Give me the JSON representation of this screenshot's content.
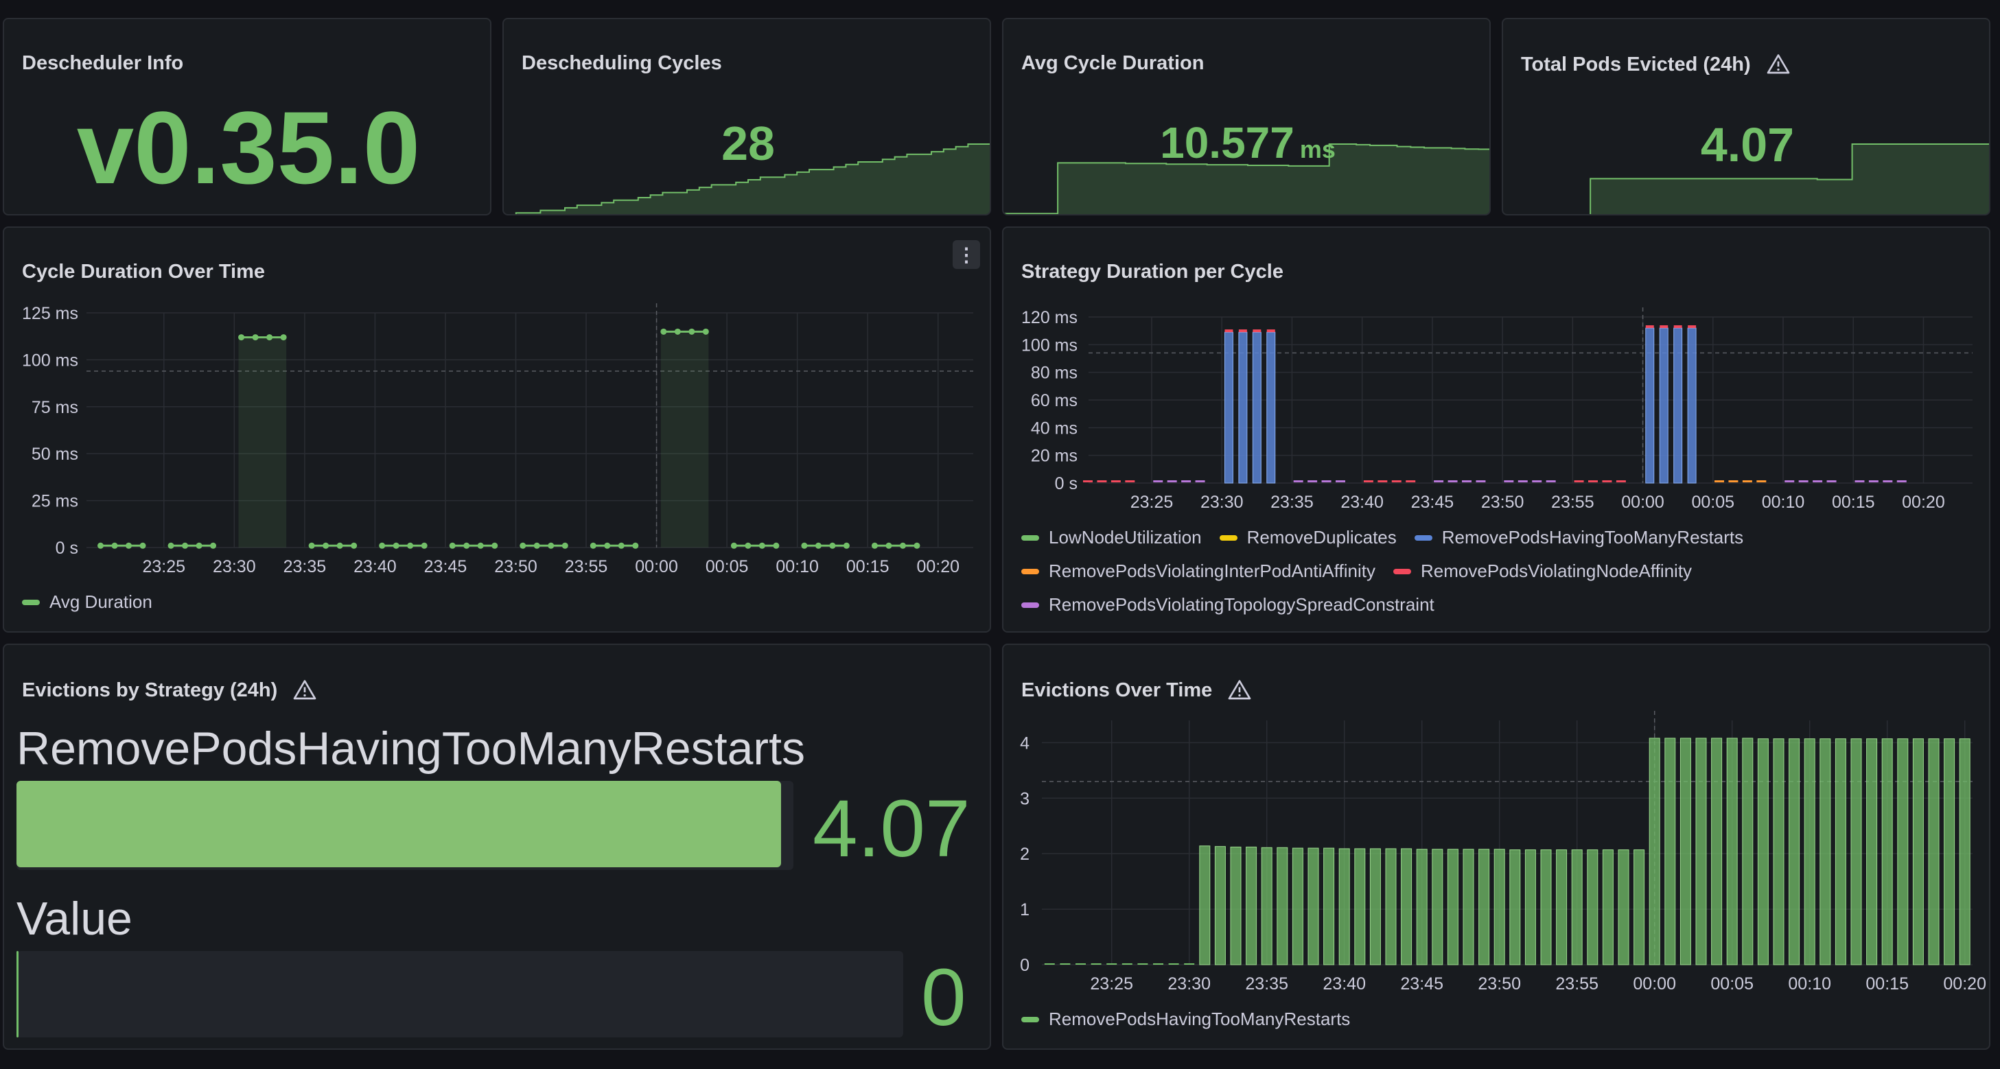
{
  "colors": {
    "green": "#73bf69",
    "blue": "#5a84d6",
    "yellow": "#f2cc0c",
    "orange": "#ff9830",
    "red": "#f2495c",
    "purple": "#b877d9",
    "panel_bg": "#181b1f",
    "page_bg": "#111217"
  },
  "panels": {
    "info": {
      "title": "Descheduler Info",
      "value": "v0.35.0"
    },
    "cycles": {
      "title": "Descheduling Cycles",
      "value": "28"
    },
    "avg": {
      "title": "Avg Cycle Duration",
      "value": "10.577",
      "unit": "ms"
    },
    "evicted": {
      "title": "Total Pods Evicted (24h)",
      "value": "4.07",
      "icon": "warning-icon"
    },
    "cycle_duration": {
      "title": "Cycle Duration Over Time",
      "menu_icon": "more-vertical-icon",
      "legend": [
        "Avg Duration"
      ]
    },
    "strategy_duration": {
      "title": "Strategy Duration per Cycle",
      "legend": [
        "LowNodeUtilization",
        "RemoveDuplicates",
        "RemovePodsHavingTooManyRestarts",
        "RemovePodsViolatingInterPodAntiAffinity",
        "RemovePodsViolatingNodeAffinity",
        "RemovePodsViolatingTopologySpreadConstraint"
      ]
    },
    "evictions_by_strategy": {
      "title": "Evictions by Strategy (24h)",
      "icon": "warning-icon",
      "bars": [
        {
          "label": "RemovePodsHavingTooManyRestarts",
          "value": "4.07",
          "fraction": 0.985
        },
        {
          "label": "Value",
          "value": "0",
          "fraction": 0.0
        }
      ]
    },
    "evictions_over_time": {
      "title": "Evictions Over Time",
      "icon": "warning-icon",
      "legend": [
        "RemovePodsHavingTooManyRestarts"
      ]
    }
  },
  "chart_data": [
    {
      "id": "cycles_sparkline",
      "type": "area",
      "y": [
        0,
        1,
        1,
        2,
        2,
        3,
        4,
        4,
        5,
        6,
        6,
        7,
        8,
        9,
        9,
        10,
        11,
        12,
        12,
        13,
        14,
        15,
        15,
        16,
        17,
        18,
        18,
        19,
        20,
        21,
        21,
        22,
        23,
        24,
        24,
        25,
        26,
        27,
        28,
        28
      ]
    },
    {
      "id": "avg_sparkline",
      "type": "area",
      "y": [
        0.3,
        0.3,
        0.3,
        0.3,
        8.4,
        8.4,
        8.4,
        8.4,
        8.4,
        8.3,
        8.3,
        8.3,
        8.2,
        8.2,
        8.2,
        8.1,
        8.1,
        8.1,
        8.0,
        8.0,
        8.0,
        7.9,
        7.9,
        7.9,
        11.4,
        11.4,
        11.3,
        11.2,
        11.2,
        11.0,
        10.9,
        10.8,
        10.8,
        10.7,
        10.6,
        10.58
      ]
    },
    {
      "id": "evicted_sparkline",
      "type": "area",
      "y": [
        0,
        0,
        0,
        0,
        0,
        2.1,
        2.1,
        2.1,
        2.1,
        2.1,
        2.1,
        2.1,
        2.1,
        2.1,
        2.1,
        2.1,
        2.1,
        2.1,
        2.05,
        2.05,
        4.07,
        4.07,
        4.07,
        4.07,
        4.07,
        4.07,
        4.07,
        4.07
      ]
    },
    {
      "id": "cycle_duration_over_time",
      "type": "line",
      "x_ticks": [
        "23:25",
        "23:30",
        "23:35",
        "23:40",
        "23:45",
        "23:50",
        "23:55",
        "00:00",
        "00:05",
        "00:10",
        "00:15",
        "00:20"
      ],
      "y_ticks": [
        "125 ms",
        "100 ms",
        "75 ms",
        "50 ms",
        "25 ms",
        "0 s"
      ],
      "ylim": [
        0,
        125
      ],
      "threshold": 94,
      "xlim": [
        -5.5,
        57.5
      ],
      "series": [
        {
          "name": "Avg Duration",
          "points": [
            [
              -4.5,
              1
            ],
            [
              -3.5,
              1
            ],
            [
              -2.5,
              1
            ],
            [
              -1.5,
              1
            ],
            [
              0.5,
              1
            ],
            [
              1.5,
              1
            ],
            [
              2.5,
              1
            ],
            [
              3.5,
              1
            ],
            [
              5.5,
              112
            ],
            [
              6.5,
              112
            ],
            [
              7.5,
              112
            ],
            [
              8.5,
              112
            ],
            [
              10.5,
              1
            ],
            [
              11.5,
              1
            ],
            [
              12.5,
              1
            ],
            [
              13.5,
              1
            ],
            [
              15.5,
              1
            ],
            [
              16.5,
              1
            ],
            [
              17.5,
              1
            ],
            [
              18.5,
              1
            ],
            [
              20.5,
              1
            ],
            [
              21.5,
              1
            ],
            [
              22.5,
              1
            ],
            [
              23.5,
              1
            ],
            [
              25.5,
              1
            ],
            [
              26.5,
              1
            ],
            [
              27.5,
              1
            ],
            [
              28.5,
              1
            ],
            [
              30.5,
              1
            ],
            [
              31.5,
              1
            ],
            [
              32.5,
              1
            ],
            [
              33.5,
              1
            ],
            [
              35.5,
              115
            ],
            [
              36.5,
              115
            ],
            [
              37.5,
              115
            ],
            [
              38.5,
              115
            ],
            [
              40.5,
              1
            ],
            [
              41.5,
              1
            ],
            [
              42.5,
              1
            ],
            [
              43.5,
              1
            ],
            [
              45.5,
              1
            ],
            [
              46.5,
              1
            ],
            [
              47.5,
              1
            ],
            [
              48.5,
              1
            ],
            [
              50.5,
              1
            ],
            [
              51.5,
              1
            ],
            [
              52.5,
              1
            ],
            [
              53.5,
              1
            ]
          ]
        }
      ]
    },
    {
      "id": "strategy_duration_per_cycle",
      "type": "bar",
      "x_ticks": [
        "23:25",
        "23:30",
        "23:35",
        "23:40",
        "23:45",
        "23:50",
        "23:55",
        "00:00",
        "00:05",
        "00:10",
        "00:15",
        "00:20"
      ],
      "y_ticks": [
        "120 ms",
        "100 ms",
        "80 ms",
        "60 ms",
        "40 ms",
        "20 ms",
        "0 s"
      ],
      "ylim": [
        0,
        120
      ],
      "threshold": 94,
      "xlim": [
        -4.5,
        58.5
      ],
      "cycle_groups": [
        {
          "x": [
            -4.5,
            -3.5,
            -2.5,
            -1.5
          ],
          "total": 1,
          "color": "red"
        },
        {
          "x": [
            0.5,
            1.5,
            2.5,
            3.5
          ],
          "total": 1,
          "color": "purple"
        },
        {
          "x": [
            5.5,
            6.5,
            7.5,
            8.5
          ],
          "total": 111,
          "color": "blue"
        },
        {
          "x": [
            10.5,
            11.5,
            12.5,
            13.5
          ],
          "total": 1,
          "color": "purple"
        },
        {
          "x": [
            15.5,
            16.5,
            17.5,
            18.5
          ],
          "total": 1,
          "color": "red"
        },
        {
          "x": [
            20.5,
            21.5,
            22.5,
            23.5
          ],
          "total": 1,
          "color": "purple"
        },
        {
          "x": [
            25.5,
            26.5,
            27.5,
            28.5
          ],
          "total": 1,
          "color": "purple"
        },
        {
          "x": [
            30.5,
            31.5,
            32.5,
            33.5
          ],
          "total": 1,
          "color": "red"
        },
        {
          "x": [
            35.5,
            36.5,
            37.5,
            38.5
          ],
          "total": 114,
          "color": "blue"
        },
        {
          "x": [
            40.5,
            41.5,
            42.5,
            43.5
          ],
          "total": 1,
          "color": "orange"
        },
        {
          "x": [
            45.5,
            46.5,
            47.5,
            48.5
          ],
          "total": 1,
          "color": "purple"
        },
        {
          "x": [
            50.5,
            51.5,
            52.5,
            53.5
          ],
          "total": 1,
          "color": "purple"
        }
      ]
    },
    {
      "id": "evictions_over_time",
      "type": "bar",
      "x_ticks": [
        "23:25",
        "23:30",
        "23:35",
        "23:40",
        "23:45",
        "23:50",
        "23:55",
        "00:00",
        "00:05",
        "00:10",
        "00:15",
        "00:20"
      ],
      "y_ticks": [
        "4",
        "3",
        "2",
        "1",
        "0"
      ],
      "ylim": [
        0,
        4.4
      ],
      "threshold": 3.3,
      "xlim": [
        -4.5,
        55.5
      ],
      "series": [
        {
          "name": "RemovePodsHavingTooManyRestarts",
          "values": [
            0,
            0,
            0,
            0,
            0,
            0,
            0,
            0,
            0,
            0,
            2.14,
            2.13,
            2.12,
            2.12,
            2.11,
            2.11,
            2.1,
            2.1,
            2.1,
            2.09,
            2.09,
            2.09,
            2.09,
            2.09,
            2.08,
            2.08,
            2.08,
            2.08,
            2.08,
            2.08,
            2.07,
            2.07,
            2.07,
            2.07,
            2.07,
            2.07,
            2.07,
            2.07,
            2.07,
            4.08,
            4.08,
            4.08,
            4.08,
            4.08,
            4.08,
            4.08,
            4.07,
            4.07,
            4.07,
            4.07,
            4.07,
            4.07,
            4.07,
            4.07,
            4.07,
            4.07,
            4.07,
            4.07,
            4.07,
            4.07
          ]
        }
      ]
    }
  ]
}
